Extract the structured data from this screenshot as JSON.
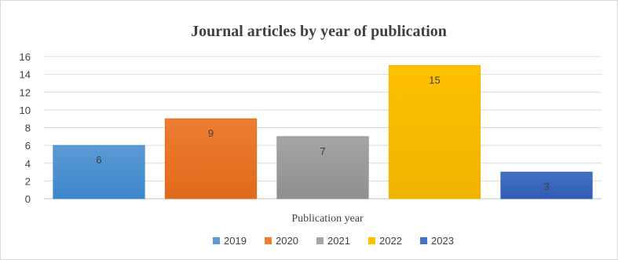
{
  "chart_data": {
    "type": "bar",
    "title": "Journal articles by year of publication",
    "xlabel": "Publication year",
    "ylabel": "",
    "ylim": [
      0,
      16
    ],
    "yticks": [
      0,
      2,
      4,
      6,
      8,
      10,
      12,
      14,
      16
    ],
    "grid": true,
    "legend_position": "bottom",
    "categories": [
      "2019",
      "2020",
      "2021",
      "2022",
      "2023"
    ],
    "values": [
      6,
      9,
      7,
      15,
      3
    ],
    "colors": [
      "#5b9bd5",
      "#ed7d31",
      "#a5a5a5",
      "#ffc000",
      "#4472c4"
    ],
    "gradient_dark": [
      "#3d86cc",
      "#e06a1b",
      "#8f8f8f",
      "#efb400",
      "#2f5bb5"
    ]
  }
}
